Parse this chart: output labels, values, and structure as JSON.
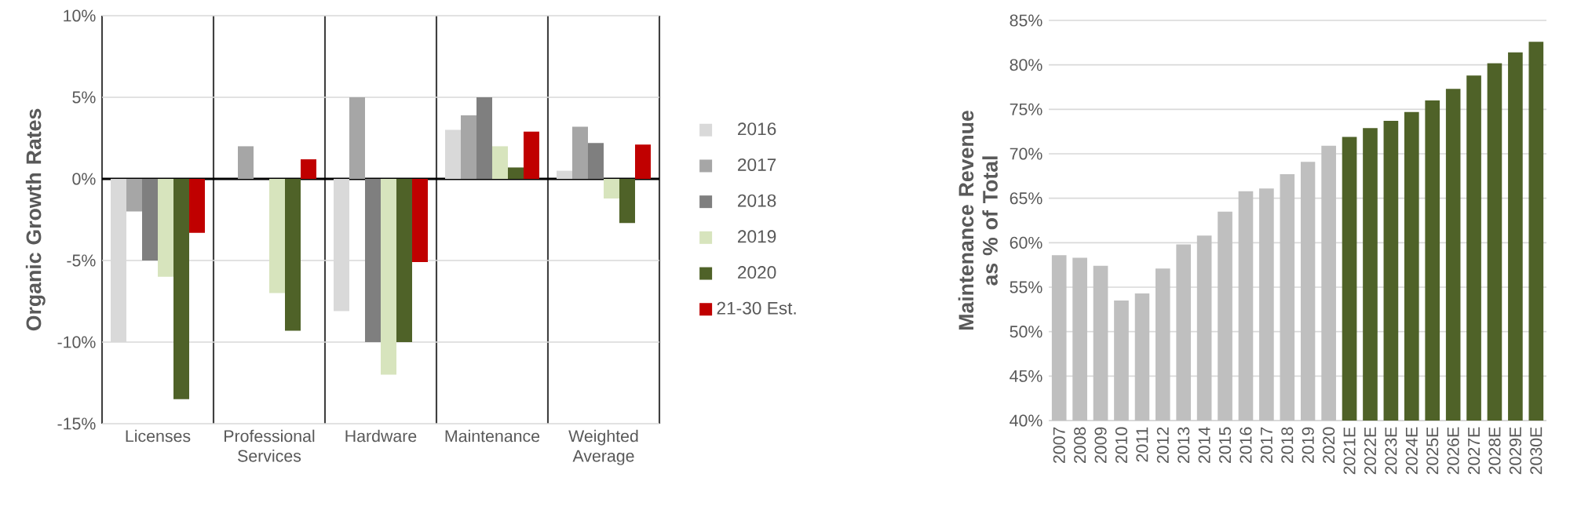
{
  "chart_data": [
    {
      "type": "bar",
      "ylabel": "Organic Growth Rates",
      "categories": [
        "Licenses",
        "Professional Services",
        "Hardware",
        "Maintenance",
        "Weighted Average"
      ],
      "series": [
        {
          "name": "2016",
          "color": "#d9d9d9",
          "values": [
            -10,
            null,
            -8.1,
            3,
            0.5
          ]
        },
        {
          "name": "2017",
          "color": "#a6a6a6",
          "values": [
            -2,
            2,
            5,
            3.9,
            3.2
          ]
        },
        {
          "name": "2018",
          "color": "#7f7f7f",
          "values": [
            -5,
            null,
            -10,
            5,
            2.2
          ]
        },
        {
          "name": "2019",
          "color": "#d7e4bd",
          "values": [
            -6,
            -7,
            -12,
            2,
            -1.2
          ]
        },
        {
          "name": "2020",
          "color": "#4f6228",
          "values": [
            -13.5,
            -9.3,
            -10,
            0.7,
            -2.7
          ]
        },
        {
          "name": "21-30 Est.",
          "color": "#c00000",
          "values": [
            -3.3,
            1.2,
            -5.1,
            2.9,
            2.1
          ]
        }
      ],
      "ylim": [
        -15,
        10
      ],
      "yticks": [
        {
          "value": -15,
          "label": "-15%"
        },
        {
          "value": -10,
          "label": "-10%"
        },
        {
          "value": -5,
          "label": "-5%"
        },
        {
          "value": 0,
          "label": "0%"
        },
        {
          "value": 5,
          "label": "5%"
        },
        {
          "value": 10,
          "label": "10%"
        }
      ],
      "grid": true,
      "legend": "right"
    },
    {
      "type": "bar",
      "ylabel": "Maintenance Revenue as % of Total",
      "categories": [
        "2007",
        "2008",
        "2009",
        "2010",
        "2011",
        "2012",
        "2013",
        "2014",
        "2015",
        "2016",
        "2017",
        "2018",
        "2019",
        "2020",
        "2021E",
        "2022E",
        "2023E",
        "2024E",
        "2025E",
        "2026E",
        "2027E",
        "2028E",
        "2029E",
        "2030E"
      ],
      "values": [
        58.6,
        58.3,
        57.4,
        53.5,
        54.3,
        57.1,
        59.8,
        60.8,
        63.5,
        65.8,
        66.1,
        67.7,
        69.1,
        70.9,
        71.9,
        72.9,
        73.7,
        74.7,
        76.0,
        77.3,
        78.8,
        80.2,
        81.4,
        82.6
      ],
      "colors": [
        "#bfbfbf",
        "#bfbfbf",
        "#bfbfbf",
        "#bfbfbf",
        "#bfbfbf",
        "#bfbfbf",
        "#bfbfbf",
        "#bfbfbf",
        "#bfbfbf",
        "#bfbfbf",
        "#bfbfbf",
        "#bfbfbf",
        "#bfbfbf",
        "#bfbfbf",
        "#4f6228",
        "#4f6228",
        "#4f6228",
        "#4f6228",
        "#4f6228",
        "#4f6228",
        "#4f6228",
        "#4f6228",
        "#4f6228",
        "#4f6228"
      ],
      "ylim": [
        40,
        85
      ],
      "yticks": [
        {
          "value": 40,
          "label": "40%"
        },
        {
          "value": 45,
          "label": "45%"
        },
        {
          "value": 50,
          "label": "50%"
        },
        {
          "value": 55,
          "label": "55%"
        },
        {
          "value": 60,
          "label": "60%"
        },
        {
          "value": 65,
          "label": "65%"
        },
        {
          "value": 70,
          "label": "70%"
        },
        {
          "value": 75,
          "label": "75%"
        },
        {
          "value": 80,
          "label": "80%"
        },
        {
          "value": 85,
          "label": "85%"
        }
      ],
      "grid": "y"
    }
  ]
}
